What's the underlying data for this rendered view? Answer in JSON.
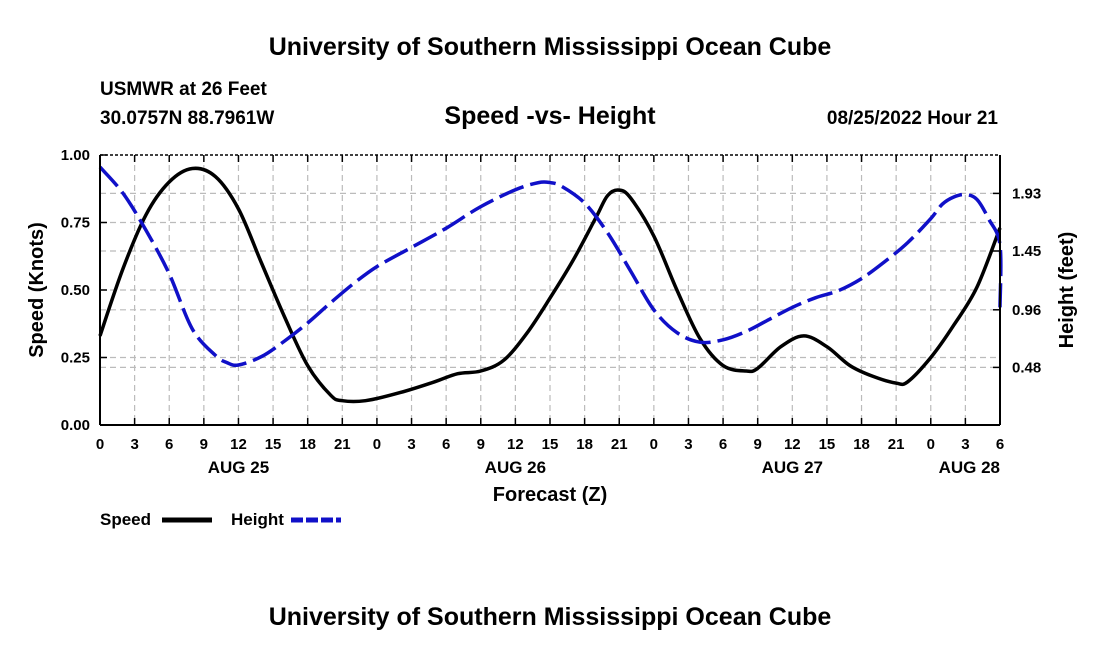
{
  "page": {
    "title": "University of Southern Mississippi Ocean Cube",
    "footer_title": "University of Southern Mississippi Ocean Cube"
  },
  "station": {
    "name": "USMWR at 26 Feet",
    "location": "30.0757N  88.7961W",
    "timestamp": "08/25/2022 Hour 21"
  },
  "colors": {
    "speed": "#000000",
    "height": "#1010c8",
    "grid": "#bbbbbb"
  },
  "chart_data": {
    "type": "line",
    "title": "Speed -vs- Height",
    "xlabel": "Forecast (Z)",
    "ylabel": "Speed (Knots)",
    "y2label": "Height (feet)",
    "xlim": [
      0,
      78
    ],
    "ylim": [
      0,
      1.0
    ],
    "y2lim": [
      0.0,
      2.25
    ],
    "x_ticks": [
      0,
      3,
      6,
      9,
      12,
      15,
      18,
      21,
      24,
      27,
      30,
      33,
      36,
      39,
      42,
      45,
      48,
      51,
      54,
      57,
      60,
      63,
      66,
      69,
      72,
      75,
      78
    ],
    "x_tick_labels": [
      "0",
      "3",
      "6",
      "9",
      "12",
      "15",
      "18",
      "21",
      "0",
      "3",
      "6",
      "9",
      "12",
      "15",
      "18",
      "21",
      "0",
      "3",
      "6",
      "9",
      "12",
      "15",
      "18",
      "21",
      "0",
      "3",
      "6"
    ],
    "date_labels": [
      {
        "x": 12,
        "label": "AUG 25"
      },
      {
        "x": 36,
        "label": "AUG 26"
      },
      {
        "x": 60,
        "label": "AUG 27"
      },
      {
        "x": 78,
        "label": "AUG 28"
      }
    ],
    "y_ticks": [
      0.0,
      0.25,
      0.5,
      0.75,
      1.0
    ],
    "y_tick_labels": [
      "0.00",
      "0.25",
      "0.50",
      "0.75",
      "1.00"
    ],
    "y2_ticks": [
      0.48,
      0.96,
      1.45,
      1.93
    ],
    "y2_tick_labels": [
      "0.48",
      "0.96",
      "1.45",
      "1.93"
    ],
    "series": [
      {
        "name": "Speed",
        "axis": "left",
        "style": "solid",
        "points": [
          [
            0,
            0.33
          ],
          [
            2,
            0.58
          ],
          [
            4,
            0.78
          ],
          [
            6,
            0.9
          ],
          [
            8,
            0.95
          ],
          [
            10,
            0.92
          ],
          [
            12,
            0.8
          ],
          [
            14,
            0.6
          ],
          [
            16,
            0.4
          ],
          [
            18,
            0.22
          ],
          [
            20,
            0.11
          ],
          [
            21,
            0.09
          ],
          [
            23,
            0.09
          ],
          [
            26,
            0.12
          ],
          [
            29,
            0.16
          ],
          [
            31,
            0.19
          ],
          [
            33,
            0.2
          ],
          [
            35,
            0.24
          ],
          [
            37,
            0.34
          ],
          [
            39,
            0.47
          ],
          [
            41,
            0.61
          ],
          [
            43,
            0.77
          ],
          [
            44,
            0.85
          ],
          [
            45,
            0.87
          ],
          [
            46,
            0.84
          ],
          [
            48,
            0.7
          ],
          [
            50,
            0.5
          ],
          [
            52,
            0.32
          ],
          [
            54,
            0.22
          ],
          [
            56,
            0.2
          ],
          [
            57,
            0.21
          ],
          [
            59,
            0.29
          ],
          [
            61,
            0.33
          ],
          [
            63,
            0.29
          ],
          [
            65,
            0.22
          ],
          [
            67,
            0.18
          ],
          [
            69,
            0.155
          ],
          [
            70,
            0.16
          ],
          [
            72,
            0.25
          ],
          [
            74,
            0.37
          ],
          [
            76,
            0.51
          ],
          [
            78,
            0.73
          ]
        ]
      },
      {
        "name": "Height",
        "axis": "right",
        "style": "dashed",
        "points": [
          [
            0,
            2.15
          ],
          [
            2,
            1.93
          ],
          [
            4,
            1.62
          ],
          [
            6,
            1.26
          ],
          [
            8,
            0.8
          ],
          [
            10,
            0.58
          ],
          [
            11,
            0.52
          ],
          [
            12,
            0.5
          ],
          [
            14,
            0.57
          ],
          [
            16,
            0.7
          ],
          [
            18,
            0.85
          ],
          [
            20,
            1.02
          ],
          [
            22,
            1.18
          ],
          [
            24,
            1.32
          ],
          [
            27,
            1.48
          ],
          [
            30,
            1.64
          ],
          [
            33,
            1.82
          ],
          [
            36,
            1.96
          ],
          [
            38,
            2.02
          ],
          [
            39,
            2.02
          ],
          [
            40,
            1.99
          ],
          [
            42,
            1.85
          ],
          [
            44,
            1.6
          ],
          [
            46,
            1.28
          ],
          [
            48,
            0.96
          ],
          [
            50,
            0.77
          ],
          [
            52,
            0.69
          ],
          [
            54,
            0.71
          ],
          [
            56,
            0.78
          ],
          [
            58,
            0.88
          ],
          [
            60,
            0.98
          ],
          [
            62,
            1.06
          ],
          [
            64,
            1.12
          ],
          [
            66,
            1.22
          ],
          [
            68,
            1.36
          ],
          [
            70,
            1.52
          ],
          [
            72,
            1.72
          ],
          [
            73,
            1.84
          ],
          [
            74,
            1.9
          ],
          [
            75,
            1.92
          ],
          [
            76,
            1.88
          ],
          [
            77,
            1.72
          ],
          [
            78,
            1.5
          ],
          [
            78,
            0.98
          ]
        ]
      }
    ],
    "legend": [
      {
        "label": "Speed",
        "style": "solid"
      },
      {
        "label": "Height",
        "style": "dashed"
      }
    ]
  }
}
